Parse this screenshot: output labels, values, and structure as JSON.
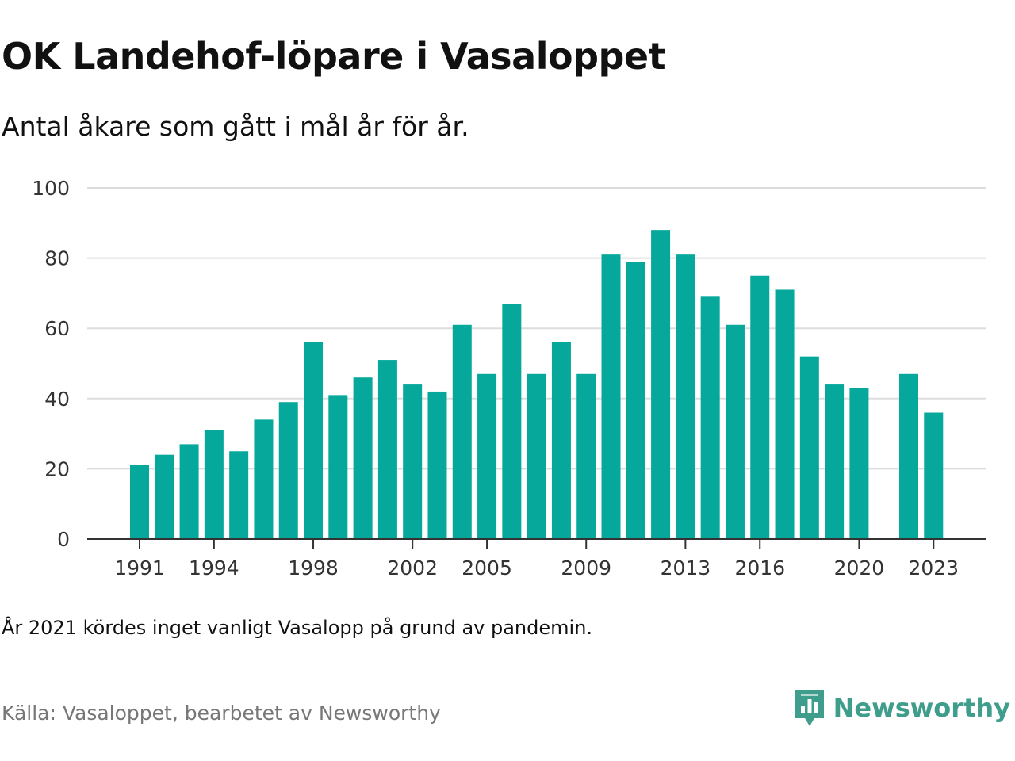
{
  "title": "OK Landehof-löpare i Vasaloppet",
  "subtitle": "Antal åkare som gått i mål år för år.",
  "footnote": "År 2021 kördes inget vanligt Vasalopp på grund av pandemin.",
  "source": "Källa: Vasaloppet, bearbetet av Newsworthy",
  "brand": {
    "name": "Newsworthy",
    "icon": "newsworthy-logo-icon",
    "color": "#3f9d8c"
  },
  "colors": {
    "bar": "#05a89a",
    "grid": "#dddddd",
    "axis": "#333333"
  },
  "chart_data": {
    "type": "bar",
    "categories": [
      1991,
      1992,
      1993,
      1994,
      1995,
      1996,
      1997,
      1998,
      1999,
      2000,
      2001,
      2002,
      2003,
      2004,
      2005,
      2006,
      2007,
      2008,
      2009,
      2010,
      2011,
      2012,
      2013,
      2014,
      2015,
      2016,
      2017,
      2018,
      2019,
      2020,
      2021,
      2022,
      2023
    ],
    "values": [
      21,
      24,
      27,
      31,
      25,
      34,
      39,
      56,
      41,
      46,
      51,
      44,
      42,
      61,
      47,
      67,
      47,
      56,
      47,
      81,
      79,
      88,
      81,
      69,
      61,
      75,
      71,
      52,
      44,
      43,
      null,
      47,
      36
    ],
    "x_tick_labels": [
      "1991",
      "1994",
      "1998",
      "2002",
      "2005",
      "2009",
      "2013",
      "2016",
      "2020",
      "2023"
    ],
    "y_ticks": [
      0,
      20,
      40,
      60,
      80,
      100
    ],
    "ylim": [
      0,
      100
    ],
    "grid": true,
    "legend": "none"
  }
}
